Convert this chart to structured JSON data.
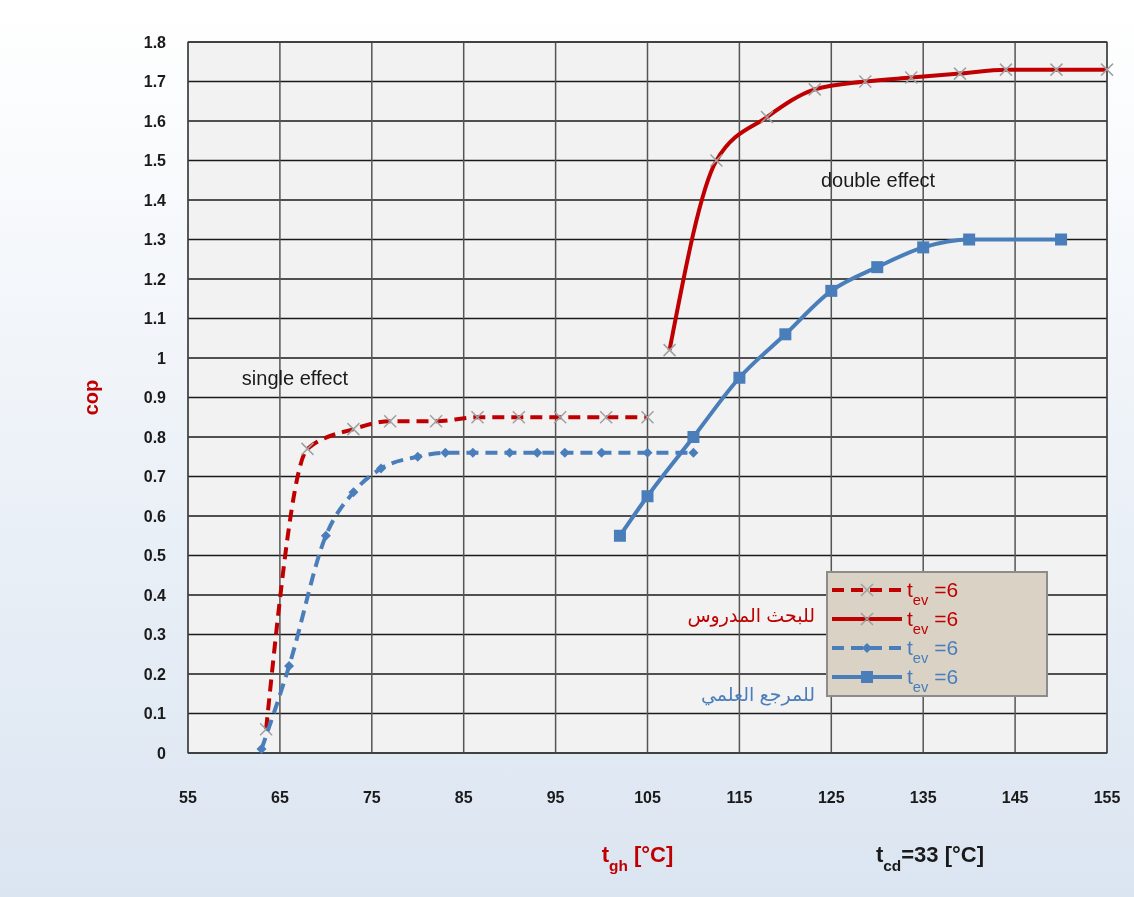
{
  "chart_data": {
    "type": "line",
    "xlabel": "t$_{gh}$ [°C]",
    "ylabel": "cop",
    "xlim": [
      55,
      155
    ],
    "xticks": [
      55,
      65,
      75,
      85,
      95,
      105,
      115,
      125,
      135,
      145,
      155
    ],
    "ylim": [
      0,
      1.8
    ],
    "yticks": [
      0,
      0.1,
      0.2,
      0.3,
      0.4,
      0.5,
      0.6,
      0.7,
      0.8,
      0.9,
      1,
      1.1,
      1.2,
      1.3,
      1.4,
      1.5,
      1.6,
      1.7,
      1.8
    ],
    "grid": true,
    "legend": "bottom right",
    "annotations": [
      "single effect",
      "double effect",
      "للبحث المدروس",
      "للمرجع العلمي",
      "t$_{cd}$=33 [°C]"
    ],
    "series": [
      {
        "name": "t$_{ev}$ =6",
        "color": "#c00000",
        "marker": "cross",
        "line_style": "dashed",
        "x": [
          63.5,
          68,
          73,
          77,
          82,
          86.5,
          91,
          95.5,
          100.5,
          105
        ],
        "values": [
          0.06,
          0.77,
          0.82,
          0.84,
          0.84,
          0.85,
          0.85,
          0.85,
          0.85,
          0.85
        ]
      },
      {
        "name": "t$_{ev}$ =6",
        "color": "#c00000",
        "marker": "cross",
        "line_style": "solid",
        "x": [
          107.4,
          112.5,
          118,
          123.2,
          128.7,
          133.7,
          139,
          144,
          149.5,
          155
        ],
        "values": [
          1.02,
          1.5,
          1.61,
          1.68,
          1.7,
          1.71,
          1.72,
          1.73,
          1.73,
          1.73
        ]
      },
      {
        "name": "t$_{ev}$ =6",
        "color": "#4a7ebb",
        "marker": "diamond",
        "line_style": "dashed",
        "x": [
          63,
          66,
          70,
          73,
          76,
          80,
          83,
          86,
          90,
          93,
          96,
          100,
          105,
          110
        ],
        "values": [
          0.01,
          0.22,
          0.55,
          0.66,
          0.72,
          0.75,
          0.76,
          0.76,
          0.76,
          0.76,
          0.76,
          0.76,
          0.76,
          0.76
        ]
      },
      {
        "name": "t$_{ev}$ =6",
        "color": "#4a7ebb",
        "marker": "square",
        "line_style": "solid",
        "x": [
          102,
          105,
          110,
          115,
          120,
          125,
          130,
          135,
          140,
          150
        ],
        "values": [
          0.55,
          0.65,
          0.8,
          0.95,
          1.06,
          1.17,
          1.23,
          1.28,
          1.3,
          1.3
        ]
      }
    ]
  }
}
